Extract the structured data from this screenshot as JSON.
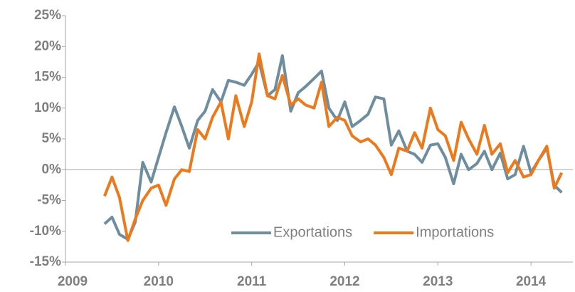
{
  "chart_data": {
    "type": "line",
    "x": [
      2009.42,
      2009.5,
      2009.58,
      2009.67,
      2009.75,
      2009.83,
      2009.92,
      2010.0,
      2010.08,
      2010.17,
      2010.25,
      2010.33,
      2010.42,
      2010.5,
      2010.58,
      2010.67,
      2010.75,
      2010.83,
      2010.92,
      2011.0,
      2011.08,
      2011.17,
      2011.25,
      2011.33,
      2011.42,
      2011.5,
      2011.58,
      2011.67,
      2011.75,
      2011.83,
      2011.92,
      2012.0,
      2012.08,
      2012.17,
      2012.25,
      2012.33,
      2012.42,
      2012.5,
      2012.58,
      2012.67,
      2012.75,
      2012.83,
      2012.92,
      2013.0,
      2013.08,
      2013.17,
      2013.25,
      2013.33,
      2013.42,
      2013.5,
      2013.58,
      2013.67,
      2013.75,
      2013.83,
      2013.92,
      2014.0,
      2014.08,
      2014.17,
      2014.25,
      2014.33
    ],
    "series": [
      {
        "name": "Exportations",
        "color": "#6e8ea0",
        "values": [
          -8.8,
          -7.7,
          -10.5,
          -11.3,
          -8.5,
          1.2,
          -2,
          2,
          6,
          10.2,
          7,
          3.5,
          8,
          9.5,
          13,
          11,
          14.5,
          14.2,
          13.7,
          15.5,
          17.5,
          12,
          13,
          18.5,
          9.5,
          12.5,
          13.5,
          14.8,
          16,
          10,
          8,
          11,
          7,
          8,
          9,
          11.8,
          11.5,
          4,
          6.3,
          3,
          2.5,
          1.2,
          4,
          4.2,
          2,
          -2.3,
          2.5,
          0,
          1,
          3,
          0,
          2.7,
          -1.5,
          -0.8,
          3.8,
          -0.5,
          1.5,
          3.5,
          -2.5,
          -3.7
        ]
      },
      {
        "name": "Importations",
        "color": "#ec7a1c",
        "values": [
          -4.3,
          -1.2,
          -4.5,
          -11.5,
          -8,
          -5,
          -3,
          -2.5,
          -5.8,
          -1.5,
          0,
          -0.3,
          6.5,
          5,
          8.5,
          11,
          5,
          12,
          7,
          11,
          18.8,
          12,
          11.5,
          15.3,
          10.5,
          11.5,
          10.5,
          10,
          14.2,
          7,
          8.5,
          8,
          5.5,
          4.5,
          5,
          4,
          2,
          -0.8,
          3.5,
          3,
          6,
          3.5,
          10,
          6.5,
          5.5,
          1.5,
          7.7,
          5,
          2.5,
          7.2,
          2.5,
          4.2,
          -0.5,
          1.5,
          -1.2,
          -0.8,
          1.5,
          3.8,
          -3,
          -0.5
        ]
      }
    ],
    "xlim": [
      2009,
      2014.45
    ],
    "xticks": [
      2009,
      2010,
      2011,
      2012,
      2013,
      2014
    ],
    "ylim": [
      -15,
      25
    ],
    "yticks": [
      {
        "value": -15,
        "label": "-15%"
      },
      {
        "value": -10,
        "label": "-10%"
      },
      {
        "value": -5,
        "label": "-5%"
      },
      {
        "value": 0,
        "label": "0%"
      },
      {
        "value": 5,
        "label": "5%"
      },
      {
        "value": 10,
        "label": "10%"
      },
      {
        "value": 15,
        "label": "15%"
      },
      {
        "value": 20,
        "label": "20%"
      },
      {
        "value": 25,
        "label": "25%"
      }
    ],
    "legend": "lower right"
  }
}
